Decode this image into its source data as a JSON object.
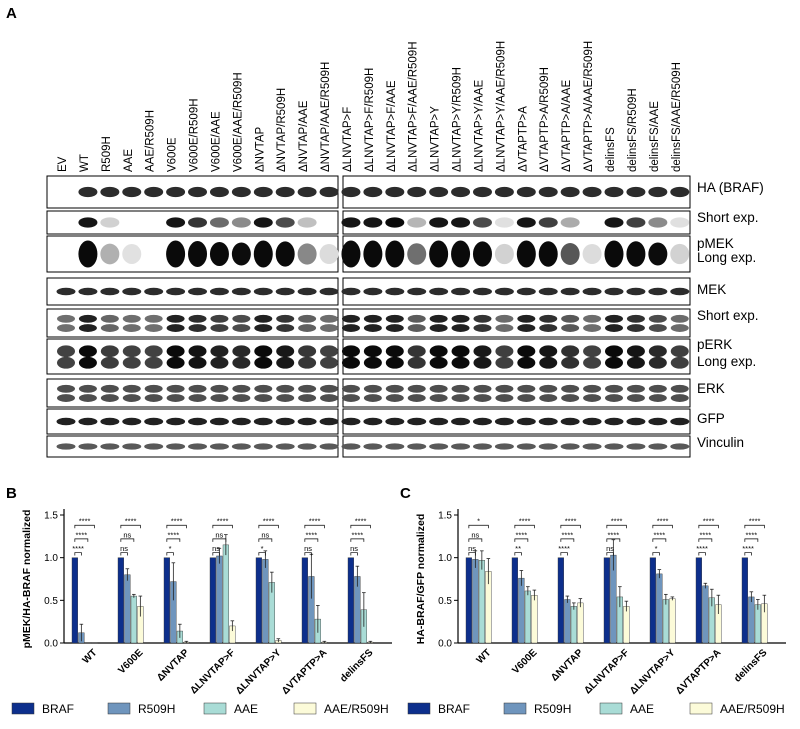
{
  "figure": {
    "panel_a_label": "A",
    "panel_b_label": "B",
    "panel_c_label": "C"
  },
  "blot": {
    "lanes": [
      "EV",
      "WT",
      "R509H",
      "AAE",
      "AAE/R509H",
      "V600E",
      "V600E/R509H",
      "V600E/AAE",
      "V600E/AAE/R509H",
      "ΔNVTAP",
      "ΔNVTAP/R509H",
      "ΔNVTAP/AAE",
      "ΔNVTAP/AAE/R509H",
      "ΔLNVTAP>F",
      "ΔLNVTAP>F/R509H",
      "ΔLNVTAP>F/AAE",
      "ΔLNVTAP>F/AAE/R509H",
      "ΔLNVTAP>Y",
      "ΔLNVTAP>Y/R509H",
      "ΔLNVTAP>Y/AAE",
      "ΔLNVTAP>Y/AAE/R509H",
      "ΔVTAPTP>A",
      "ΔVTAPTP>A/R509H",
      "ΔVTAPTP>A/AAE",
      "ΔVTAPTP>A/AAE/R509H",
      "delinsFS",
      "delinsFS/R509H",
      "delinsFS/AAE",
      "delinsFS/AAE/R509H"
    ],
    "blots": [
      {
        "label": "HA (BRAF)",
        "sub": ""
      },
      {
        "label": "Short exp.",
        "sub": "pMEK"
      },
      {
        "label": "Long exp.",
        "sub": ""
      },
      {
        "label": "MEK",
        "sub": ""
      },
      {
        "label": "Short exp.",
        "sub": "pERK"
      },
      {
        "label": "Long exp.",
        "sub": ""
      },
      {
        "label": "ERK",
        "sub": ""
      },
      {
        "label": "GFP",
        "sub": ""
      },
      {
        "label": "Vinculin",
        "sub": ""
      }
    ],
    "pmek_label": "pMEK",
    "perk_label": "pERK"
  },
  "legend": {
    "items": [
      {
        "name": "BRAF",
        "color": "#0d2f8c"
      },
      {
        "name": "R509H",
        "color": "#6f95bd"
      },
      {
        "name": "AAE",
        "color": "#a9dcd6"
      },
      {
        "name": "AAE/R509H",
        "color": "#fcfbd9"
      }
    ]
  },
  "chart_data": [
    {
      "type": "bar",
      "ylabel": "pMEK/HA-BRAF normalized",
      "ylim": [
        0,
        1.5
      ],
      "yticks": [
        "0.0",
        "0.5",
        "1.0",
        "1.5"
      ],
      "categories": [
        "WT",
        "V600E",
        "ΔNVTAP",
        "ΔLNVTAP>F",
        "ΔLNVTAP>Y",
        "ΔVTAPTP>A",
        "delinsFS"
      ],
      "series": [
        {
          "name": "BRAF",
          "values": [
            1,
            1,
            1,
            1,
            1,
            1,
            1
          ],
          "errors": [
            0,
            0,
            0,
            0,
            0,
            0,
            0
          ]
        },
        {
          "name": "R509H",
          "values": [
            0.12,
            0.8,
            0.72,
            1.02,
            0.98,
            0.78,
            0.78
          ],
          "errors": [
            0.1,
            0.07,
            0.22,
            0.09,
            0.1,
            0.26,
            0.12
          ]
        },
        {
          "name": "AAE",
          "values": [
            0.0,
            0.55,
            0.14,
            1.15,
            0.71,
            0.28,
            0.39
          ],
          "errors": [
            0,
            0.02,
            0.08,
            0.12,
            0.12,
            0.16,
            0.2
          ]
        },
        {
          "name": "AAE/R509H",
          "values": [
            0.0,
            0.43,
            0.01,
            0.2,
            0.03,
            0.01,
            0.01
          ],
          "errors": [
            0,
            0.12,
            0.01,
            0.06,
            0.02,
            0.01,
            0.01
          ]
        }
      ],
      "significance": [
        [
          "****",
          "****",
          "****"
        ],
        [
          "****",
          "ns",
          "ns"
        ],
        [
          "****",
          "****",
          "*"
        ],
        [
          "****",
          "ns",
          "ns"
        ],
        [
          "****",
          "ns",
          "*"
        ],
        [
          "****",
          "****",
          "ns"
        ],
        [
          "****",
          "****",
          "ns"
        ]
      ]
    },
    {
      "type": "bar",
      "ylabel": "HA-BRAF/GFP normalized",
      "ylim": [
        0,
        1.5
      ],
      "yticks": [
        "0.0",
        "0.5",
        "1.0",
        "1.5"
      ],
      "categories": [
        "WT",
        "V600E",
        "ΔNVTAP",
        "ΔLNVTAP>F",
        "ΔLNVTAP>Y",
        "ΔVTAPTP>A",
        "delinsFS"
      ],
      "series": [
        {
          "name": "BRAF",
          "values": [
            1,
            1,
            1,
            1,
            1,
            1,
            1
          ],
          "errors": [
            0,
            0,
            0,
            0,
            0,
            0,
            0
          ]
        },
        {
          "name": "R509H",
          "values": [
            0.98,
            0.76,
            0.51,
            1.03,
            0.81,
            0.67,
            0.54
          ],
          "errors": [
            0.1,
            0.09,
            0.04,
            0.18,
            0.05,
            0.03,
            0.06
          ]
        },
        {
          "name": "AAE",
          "values": [
            0.97,
            0.61,
            0.43,
            0.54,
            0.51,
            0.53,
            0.45
          ],
          "errors": [
            0.11,
            0.05,
            0.04,
            0.12,
            0.06,
            0.1,
            0.06
          ]
        },
        {
          "name": "AAE/R509H",
          "values": [
            0.84,
            0.56,
            0.47,
            0.43,
            0.52,
            0.45,
            0.46
          ],
          "errors": [
            0.15,
            0.06,
            0.05,
            0.06,
            0.02,
            0.11,
            0.1
          ]
        }
      ],
      "significance": [
        [
          "*",
          "ns",
          "ns"
        ],
        [
          "****",
          "****",
          "**"
        ],
        [
          "****",
          "****",
          "****"
        ],
        [
          "****",
          "****",
          "ns"
        ],
        [
          "****",
          "****",
          "*"
        ],
        [
          "****",
          "****",
          "****"
        ],
        [
          "****",
          "****",
          "****"
        ]
      ]
    }
  ]
}
